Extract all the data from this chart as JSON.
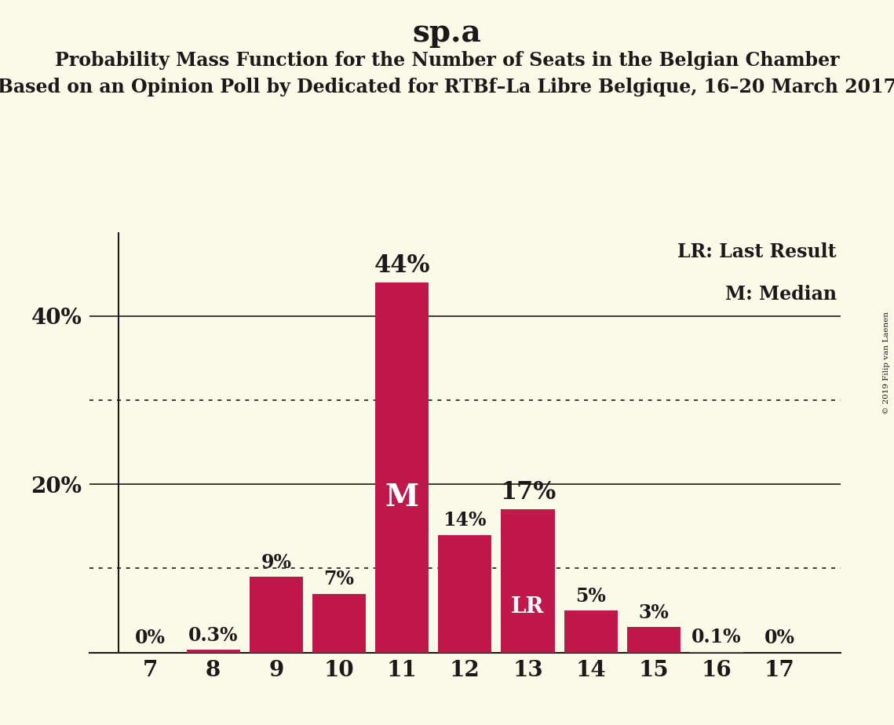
{
  "title": "sp.a",
  "subtitle1": "Probability Mass Function for the Number of Seats in the Belgian Chamber",
  "subtitle2": "Based on an Opinion Poll by Dedicated for RTBf–La Libre Belgique, 16–20 March 2017",
  "copyright": "© 2019 Filip van Laenen",
  "categories": [
    7,
    8,
    9,
    10,
    11,
    12,
    13,
    14,
    15,
    16,
    17
  ],
  "values": [
    0.0,
    0.3,
    9.0,
    7.0,
    44.0,
    14.0,
    17.0,
    5.0,
    3.0,
    0.1,
    0.0
  ],
  "labels": [
    "0%",
    "0.3%",
    "9%",
    "7%",
    "44%",
    "14%",
    "17%",
    "5%",
    "3%",
    "0.1%",
    "0%"
  ],
  "bar_color": "#c0184a",
  "background_color": "#fafae8",
  "text_color": "#1a1a1a",
  "median_seat": 11,
  "lr_seat": 13,
  "legend_lr": "LR: Last Result",
  "legend_m": "M: Median",
  "yticks": [
    20,
    40
  ],
  "ytick_labels": [
    "20%",
    "40%"
  ],
  "dotted_lines": [
    10,
    30
  ],
  "solid_lines": [
    0,
    20,
    40
  ],
  "ylim": [
    0,
    50
  ],
  "title_fontsize": 28,
  "subtitle_fontsize": 17,
  "label_fontsize": 17,
  "tick_fontsize": 20,
  "legend_fontsize": 17,
  "annotation_fontsize": 22,
  "m_fontsize": 28,
  "lr_fontsize": 20
}
